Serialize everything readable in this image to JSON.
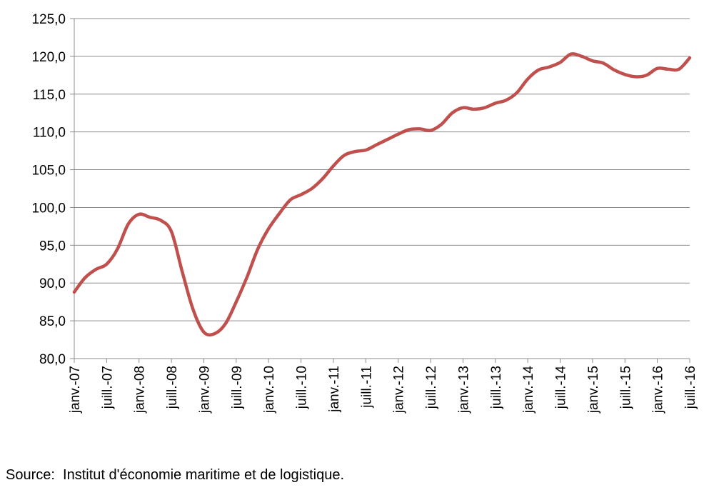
{
  "chart_data": {
    "type": "line",
    "title": "",
    "xlabel": "",
    "ylabel": "",
    "ylim": [
      80,
      125
    ],
    "y_ticks": [
      "80,0",
      "85,0",
      "90,0",
      "95,0",
      "100,0",
      "105,0",
      "110,0",
      "115,0",
      "120,0",
      "125,0"
    ],
    "x_tick_labels": [
      "janv.-07",
      "juill.-07",
      "janv.-08",
      "juill.-08",
      "janv.-09",
      "juill.-09",
      "janv.-10",
      "juill.-10",
      "janv.-11",
      "juill.-11",
      "janv.-12",
      "juill.-12",
      "janv.-13",
      "juill.-13",
      "janv.-14",
      "juill.-14",
      "janv.-15",
      "juill.-15",
      "janv.-16",
      "juill.-16"
    ],
    "grid": "horizontal",
    "legend": "none",
    "line_color": "#c0504d",
    "series": [
      {
        "points": [
          [
            "2007-01",
            88.8
          ],
          [
            "2007-03",
            90.7
          ],
          [
            "2007-05",
            91.8
          ],
          [
            "2007-07",
            92.5
          ],
          [
            "2007-09",
            94.5
          ],
          [
            "2007-11",
            97.8
          ],
          [
            "2008-01",
            99.1
          ],
          [
            "2008-03",
            98.7
          ],
          [
            "2008-05",
            98.3
          ],
          [
            "2008-07",
            96.8
          ],
          [
            "2008-09",
            91.5
          ],
          [
            "2008-11",
            86.5
          ],
          [
            "2009-01",
            83.5
          ],
          [
            "2009-03",
            83.3
          ],
          [
            "2009-05",
            84.6
          ],
          [
            "2009-07",
            87.5
          ],
          [
            "2009-09",
            90.8
          ],
          [
            "2009-11",
            94.5
          ],
          [
            "2010-01",
            97.2
          ],
          [
            "2010-03",
            99.2
          ],
          [
            "2010-05",
            101.0
          ],
          [
            "2010-07",
            101.7
          ],
          [
            "2010-09",
            102.5
          ],
          [
            "2010-11",
            103.8
          ],
          [
            "2011-01",
            105.5
          ],
          [
            "2011-03",
            106.9
          ],
          [
            "2011-05",
            107.4
          ],
          [
            "2011-07",
            107.6
          ],
          [
            "2011-09",
            108.3
          ],
          [
            "2011-11",
            109.0
          ],
          [
            "2012-01",
            109.7
          ],
          [
            "2012-03",
            110.3
          ],
          [
            "2012-05",
            110.4
          ],
          [
            "2012-07",
            110.2
          ],
          [
            "2012-09",
            111.0
          ],
          [
            "2012-11",
            112.5
          ],
          [
            "2013-01",
            113.2
          ],
          [
            "2013-03",
            113.0
          ],
          [
            "2013-05",
            113.2
          ],
          [
            "2013-07",
            113.8
          ],
          [
            "2013-09",
            114.2
          ],
          [
            "2013-11",
            115.2
          ],
          [
            "2014-01",
            117.0
          ],
          [
            "2014-03",
            118.2
          ],
          [
            "2014-05",
            118.6
          ],
          [
            "2014-07",
            119.2
          ],
          [
            "2014-09",
            120.3
          ],
          [
            "2014-11",
            120.0
          ],
          [
            "2015-01",
            119.4
          ],
          [
            "2015-03",
            119.1
          ],
          [
            "2015-05",
            118.2
          ],
          [
            "2015-07",
            117.6
          ],
          [
            "2015-09",
            117.3
          ],
          [
            "2015-11",
            117.5
          ],
          [
            "2016-01",
            118.4
          ],
          [
            "2016-03",
            118.3
          ],
          [
            "2016-05",
            118.3
          ],
          [
            "2016-07",
            119.8
          ]
        ]
      }
    ]
  },
  "source_note": "Source:  Institut d'économie maritime et de logistique."
}
